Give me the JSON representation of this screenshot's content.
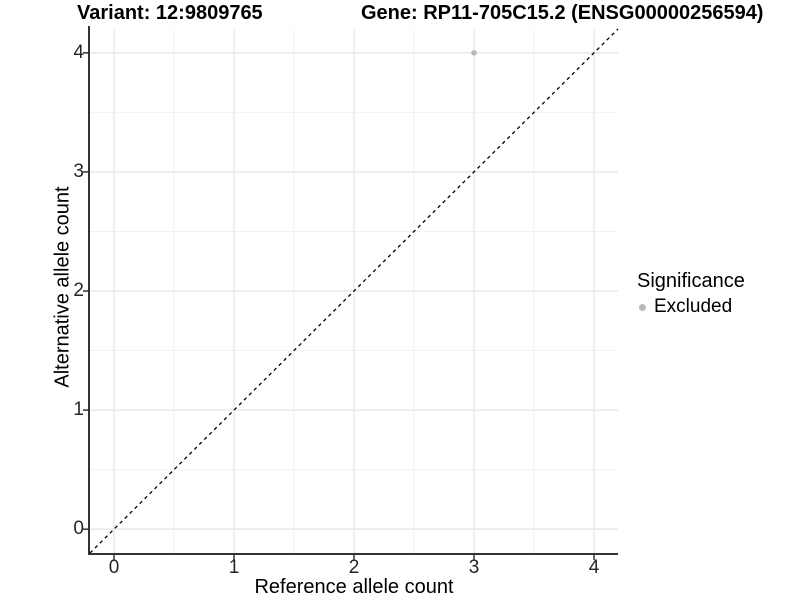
{
  "header": {
    "variant_title": "Variant: 12:9809765",
    "gene_title": "Gene: RP11-705C15.2 (ENSG00000256594)"
  },
  "chart_data": {
    "type": "scatter",
    "xlabel": "Reference allele count",
    "ylabel": "Alternative allele count",
    "xlim": [
      -0.2,
      4.2
    ],
    "ylim": [
      -0.2,
      4.2
    ],
    "x_ticks": [
      0,
      1,
      2,
      3,
      4
    ],
    "y_ticks": [
      0,
      1,
      2,
      3,
      4
    ],
    "x_minor_ticks": [
      0.5,
      1.5,
      2.5,
      3.5
    ],
    "y_minor_ticks": [
      0.5,
      1.5,
      2.5,
      3.5
    ],
    "grid": "major+minor",
    "identity_line": {
      "style": "dashed",
      "from": [
        -0.2,
        -0.2
      ],
      "to": [
        4.2,
        4.2
      ],
      "color": "#000000"
    },
    "series": [
      {
        "name": "Excluded",
        "color": "#b9b9b9",
        "marker_radius": 2.8,
        "points": [
          [
            3,
            4
          ]
        ]
      }
    ],
    "legend": {
      "title": "Significance",
      "position": "right",
      "entries": [
        {
          "label": "Excluded",
          "color": "#b9b9b9"
        }
      ]
    }
  },
  "colors": {
    "background": "#ffffff",
    "grid_major": "#e6e6e6",
    "grid_minor": "#f2f2f2",
    "axis_line": "#333333",
    "tick_mark": "#333333",
    "tick_text": "#262626"
  }
}
